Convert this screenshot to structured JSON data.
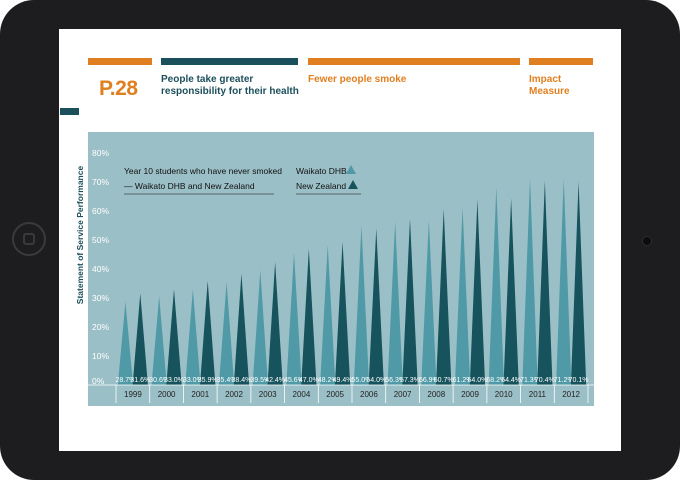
{
  "header": {
    "page_number": "P.28",
    "section_title": "People take greater responsibility for their health",
    "subsection_title": "Fewer people smoke",
    "category_title": "Impact Measure",
    "side_label": "Statement of Service Performance"
  },
  "colors": {
    "orange": "#e07f1f",
    "dark_teal": "#1c4f5c",
    "chart_bg": "#9bbfc6",
    "light_series": "#4f9aa6",
    "dark_series": "#17535c"
  },
  "chart_data": {
    "type": "area",
    "title": "Year 10 students who have never smoked",
    "subtitle": "— Waikato DHB and New Zealand",
    "categories": [
      "1999",
      "2000",
      "2001",
      "2002",
      "2003",
      "2004",
      "2005",
      "2006",
      "2007",
      "2008",
      "2009",
      "2010",
      "2011",
      "2012"
    ],
    "series": [
      {
        "name": "Waikato DHB",
        "values": [
          28.7,
          30.6,
          33.0,
          35.4,
          39.5,
          45.6,
          48.2,
          55.0,
          56.3,
          56.9,
          61.2,
          68.2,
          71.3,
          71.2
        ],
        "labels": [
          "28.7%",
          "30.6%",
          "33.0%",
          "35.4%",
          "39.5%",
          "45.6%",
          "48.2%",
          "55.0%",
          "56.3%",
          "56.9%",
          "61.2%",
          "68.2%",
          "71.3%",
          "71.2%"
        ]
      },
      {
        "name": "New Zealand",
        "values": [
          31.6,
          33.0,
          35.9,
          38.4,
          42.4,
          47.0,
          49.4,
          54.0,
          57.3,
          60.7,
          64.0,
          64.4,
          70.4,
          70.1
        ],
        "labels": [
          "31.6%",
          "33.0%",
          "35.9%",
          "38.4%",
          "42.4%",
          "47.0%",
          "49.4%",
          "54.0%",
          "57.3%",
          "60.7%",
          "64.0%",
          "64.4%",
          "70.4%",
          "70.1%"
        ]
      }
    ],
    "yticks": [
      "0%",
      "10%",
      "20%",
      "30%",
      "40%",
      "50%",
      "60%",
      "70%",
      "80%"
    ],
    "ylim": [
      0,
      80
    ],
    "legend_position": "top-center",
    "grid": false
  }
}
